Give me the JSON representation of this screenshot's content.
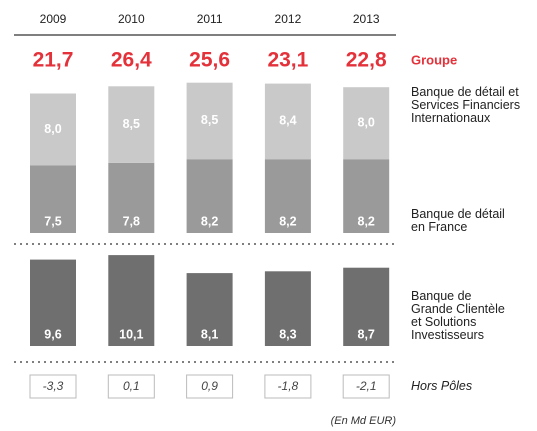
{
  "chart_data": {
    "type": "bar",
    "categories": [
      "2009",
      "2010",
      "2011",
      "2012",
      "2013"
    ],
    "totals": {
      "name": "Groupe",
      "color": "#e4323b",
      "values": [
        21.7,
        26.4,
        25.6,
        23.1,
        22.8
      ],
      "value_labels": [
        "21,7",
        "26,4",
        "25,6",
        "23,1",
        "22,8"
      ]
    },
    "series": [
      {
        "name": "Banque de détail\nen France",
        "color": "#9a9a9a",
        "panel": 1,
        "values": [
          7.5,
          7.8,
          8.2,
          8.2,
          8.2
        ],
        "value_labels": [
          "7,5",
          "7,8",
          "8,2",
          "8,2",
          "8,2"
        ]
      },
      {
        "name": "Banque de détail et\nServices Financiers\nInternationaux",
        "color": "#c9c9c9",
        "panel": 1,
        "values": [
          8.0,
          8.5,
          8.5,
          8.4,
          8.0
        ],
        "value_labels": [
          "8,0",
          "8,5",
          "8,5",
          "8,4",
          "8,0"
        ]
      },
      {
        "name": "Banque de\nGrande Clientèle\net Solutions\nInvestisseurs",
        "color": "#6f6f6f",
        "panel": 2,
        "values": [
          9.6,
          10.1,
          8.1,
          8.3,
          8.7
        ],
        "value_labels": [
          "9,6",
          "10,1",
          "8,1",
          "8,3",
          "8,7"
        ]
      },
      {
        "name": "Hors Pôles",
        "color": "#ffffff",
        "panel": 3,
        "values": [
          -3.3,
          0.1,
          0.9,
          -1.8,
          -2.1
        ],
        "value_labels": [
          "-3,3",
          "0,1",
          "0,9",
          "-1,8",
          "-2,1"
        ]
      }
    ],
    "note": "(En Md EUR)"
  }
}
